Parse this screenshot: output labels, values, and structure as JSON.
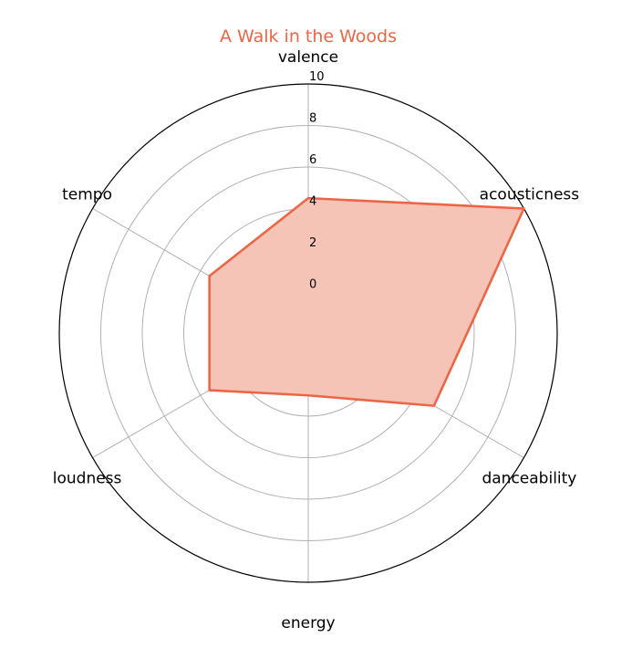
{
  "chart_data": {
    "type": "radar",
    "title": "A Walk in the Woods",
    "categories": [
      "valence",
      "acousticness",
      "danceability",
      "energy",
      "loudness",
      "tempo"
    ],
    "series": [
      {
        "values": [
          4.5,
          10.0,
          5.0,
          1.0,
          3.5,
          3.5
        ]
      }
    ],
    "rlim": [
      -2,
      10
    ],
    "rticks": [
      0,
      2,
      4,
      6,
      8,
      10
    ],
    "grid": true,
    "colors": {
      "line": "#ec6646",
      "fill": "#f5c4b7",
      "title": "#ec6646",
      "grid": "#b0b0b0",
      "frame": "#000000"
    }
  }
}
